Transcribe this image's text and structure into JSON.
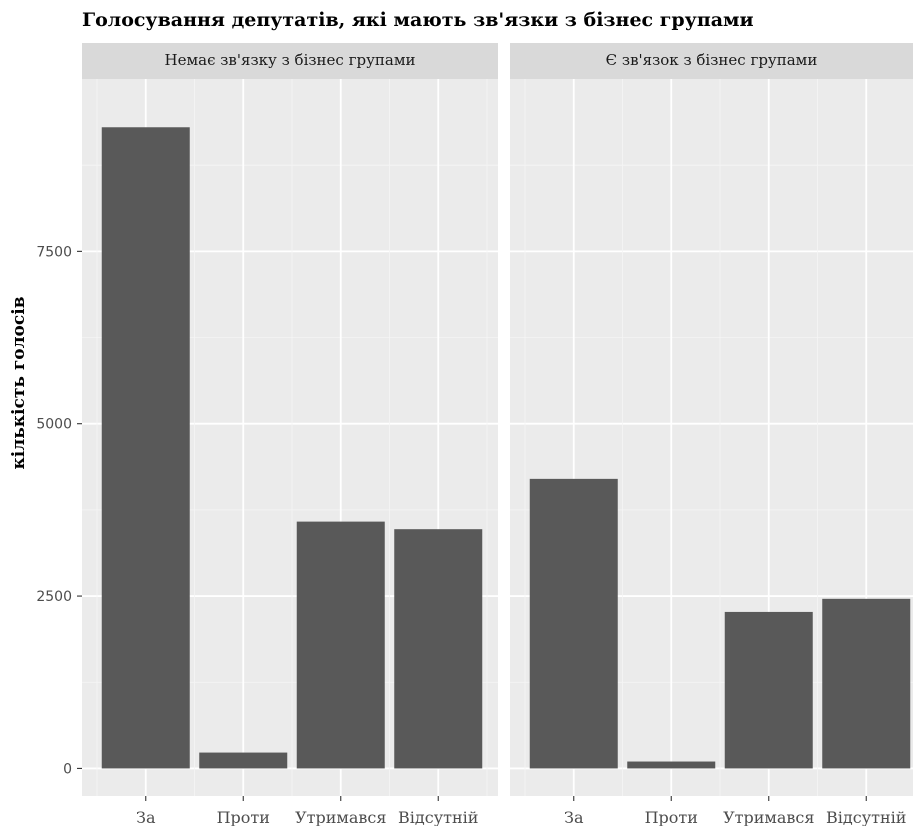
{
  "chart_data": {
    "type": "bar",
    "title": "Голосування депутатів, які мають зв'язки з бізнес групами",
    "xlabel": "",
    "ylabel": "кількість голосів",
    "categories": [
      "За",
      "Проти",
      "Утримався",
      "Відсутній"
    ],
    "y_ticks": [
      0,
      2500,
      5000,
      7500
    ],
    "y_tick_labels": [
      "0",
      "2500",
      "5000",
      "7500"
    ],
    "ylim": [
      -400,
      10000
    ],
    "grid": true,
    "bar_color": "#595959",
    "panel_background": "#ebebeb",
    "strip_background": "#d9d9d9",
    "facets": [
      {
        "label": "Немає зв'язку з бізнес групами",
        "values": [
          9300,
          230,
          3580,
          3470
        ]
      },
      {
        "label": "Є зв'язок з бізнес групами",
        "values": [
          4200,
          100,
          2270,
          2460
        ]
      }
    ]
  }
}
